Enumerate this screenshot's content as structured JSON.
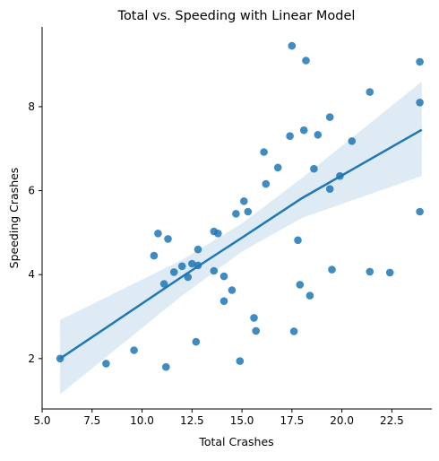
{
  "chart_data": {
    "type": "scatter",
    "title": "Total vs. Speeding with Linear Model",
    "xlabel": "Total Crashes",
    "ylabel": "Speeding Crashes",
    "xlim": [
      5.0,
      24.5
    ],
    "ylim": [
      0.8,
      9.9
    ],
    "xticks": [
      "5.0",
      "7.5",
      "10.0",
      "12.5",
      "15.0",
      "17.5",
      "20.0",
      "22.5"
    ],
    "yticks": [
      "2",
      "4",
      "6",
      "8"
    ],
    "grid": false,
    "colors": {
      "points": "#1f77b4",
      "line": "#1f77b4",
      "band": "#1f77b4"
    },
    "points": [
      [
        5.9,
        2.0
      ],
      [
        8.2,
        1.88
      ],
      [
        9.6,
        2.2
      ],
      [
        10.6,
        4.45
      ],
      [
        10.8,
        4.98
      ],
      [
        11.1,
        3.78
      ],
      [
        11.2,
        1.8
      ],
      [
        11.3,
        4.85
      ],
      [
        11.6,
        4.06
      ],
      [
        12.0,
        4.2
      ],
      [
        12.3,
        3.94
      ],
      [
        12.5,
        4.26
      ],
      [
        12.7,
        2.4
      ],
      [
        12.8,
        4.6
      ],
      [
        12.8,
        4.22
      ],
      [
        13.6,
        5.03
      ],
      [
        13.6,
        4.09
      ],
      [
        13.8,
        4.98
      ],
      [
        14.1,
        3.96
      ],
      [
        14.1,
        3.37
      ],
      [
        14.5,
        3.63
      ],
      [
        14.7,
        5.45
      ],
      [
        14.9,
        1.94
      ],
      [
        15.1,
        5.75
      ],
      [
        15.3,
        5.5
      ],
      [
        15.6,
        2.97
      ],
      [
        15.7,
        2.66
      ],
      [
        16.1,
        6.92
      ],
      [
        16.2,
        6.16
      ],
      [
        16.8,
        6.55
      ],
      [
        17.4,
        7.3
      ],
      [
        17.5,
        9.45
      ],
      [
        17.6,
        2.65
      ],
      [
        17.8,
        4.82
      ],
      [
        17.9,
        3.76
      ],
      [
        18.1,
        7.44
      ],
      [
        18.2,
        9.1
      ],
      [
        18.4,
        3.5
      ],
      [
        18.6,
        6.52
      ],
      [
        18.8,
        7.33
      ],
      [
        19.4,
        6.04
      ],
      [
        19.4,
        7.75
      ],
      [
        19.5,
        4.12
      ],
      [
        19.9,
        6.35
      ],
      [
        20.5,
        7.18
      ],
      [
        21.4,
        8.35
      ],
      [
        21.4,
        4.07
      ],
      [
        22.4,
        4.05
      ],
      [
        23.9,
        8.1
      ],
      [
        23.9,
        9.07
      ],
      [
        23.9,
        5.5
      ]
    ],
    "regression": {
      "x": [
        5.9,
        12.0,
        15.0,
        18.0,
        24.0
      ],
      "y": [
        2.0,
        3.95,
        4.88,
        5.82,
        7.45
      ],
      "lower": [
        1.15,
        3.5,
        4.55,
        5.35,
        6.35
      ],
      "upper": [
        2.92,
        4.35,
        5.22,
        6.3,
        8.6
      ]
    }
  }
}
